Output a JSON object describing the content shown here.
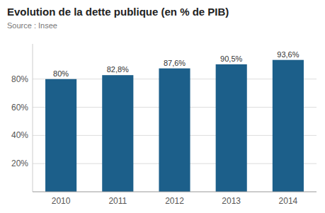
{
  "chart_data": {
    "type": "bar",
    "title": "Evolution de la dette publique (en % de PIB)",
    "subtitle": "Source : Insee",
    "categories": [
      "2010",
      "2011",
      "2012",
      "2013",
      "2014"
    ],
    "values": [
      80.0,
      82.8,
      87.6,
      90.5,
      93.6
    ],
    "value_labels": [
      "80%",
      "82,8%",
      "87,6%",
      "90,5%",
      "93,6%"
    ],
    "data_labels": true,
    "color": "#1c5f8a",
    "ylim": [
      0,
      105
    ],
    "yticks": [
      {
        "value": 20,
        "label": "20%"
      },
      {
        "value": 40,
        "label": "40%"
      },
      {
        "value": 60,
        "label": "60%"
      },
      {
        "value": 80,
        "label": "80%"
      }
    ],
    "grid": true
  }
}
